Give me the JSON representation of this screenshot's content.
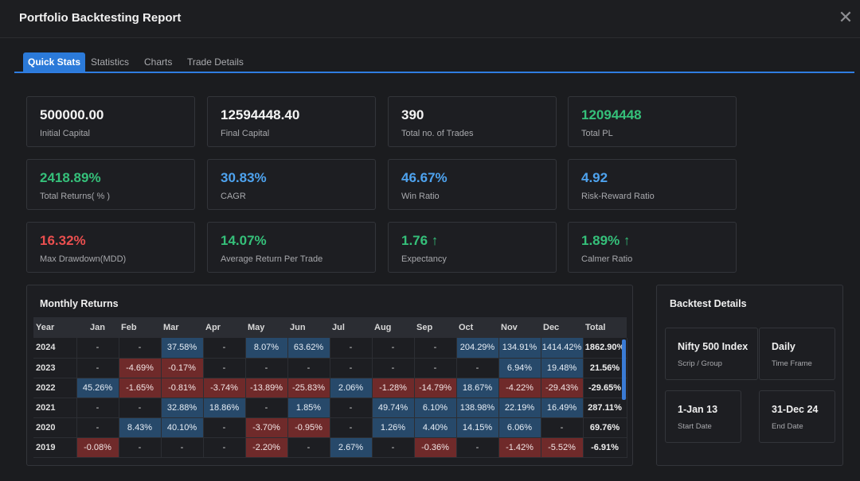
{
  "window": {
    "title": "Portfolio Backtesting Report",
    "close_glyph": "✕"
  },
  "tabs": [
    "Quick Stats",
    "Statistics",
    "Charts",
    "Trade Details"
  ],
  "cards": [
    {
      "value": "500000.00",
      "label": "Initial Capital"
    },
    {
      "value": "12594448.40",
      "label": "Final Capital"
    },
    {
      "value": "390",
      "label": "Total no. of Trades"
    },
    {
      "value": "12094448",
      "label": "Total PL"
    },
    {
      "value": "2418.89%",
      "label": "Total Returns( % )"
    },
    {
      "value": "30.83%",
      "label": "CAGR"
    },
    {
      "value": "46.67%",
      "label": "Win Ratio"
    },
    {
      "value": "4.92",
      "label": "Risk-Reward Ratio"
    },
    {
      "value": "16.32%",
      "label": "Max Drawdown(MDD)"
    },
    {
      "value": "14.07%",
      "label": "Average Return Per Trade"
    },
    {
      "value": "1.76 ↑",
      "label": "Expectancy"
    },
    {
      "value": "1.89% ↑",
      "label": "Calmer Ratio"
    }
  ],
  "colors": {
    "positive": "#35c07a",
    "accent": "#4ea3ef",
    "negative": "#ea4f4f",
    "tab_active": "#2b7ad9"
  },
  "monthly": {
    "title": "Monthly Returns",
    "headers": [
      "Year",
      "Jan",
      "Feb",
      "Mar",
      "Apr",
      "May",
      "Jun",
      "Jul",
      "Aug",
      "Sep",
      "Oct",
      "Nov",
      "Dec",
      "Total"
    ],
    "rows": [
      [
        "2024",
        "-",
        "-",
        "37.58%",
        "-",
        "8.07%",
        "63.62%",
        "-",
        "-",
        "-",
        "204.29%",
        "134.91%",
        "1414.42%",
        "1862.90%"
      ],
      [
        "2023",
        "-",
        "-4.69%",
        "-0.17%",
        "-",
        "-",
        "-",
        "-",
        "-",
        "-",
        "-",
        "6.94%",
        "19.48%",
        "21.56%"
      ],
      [
        "2022",
        "45.26%",
        "-1.65%",
        "-0.81%",
        "-3.74%",
        "-13.89%",
        "-25.83%",
        "2.06%",
        "-1.28%",
        "-14.79%",
        "18.67%",
        "-4.22%",
        "-29.43%",
        "-29.65%"
      ],
      [
        "2021",
        "-",
        "-",
        "32.88%",
        "18.86%",
        "-",
        "1.85%",
        "-",
        "49.74%",
        "6.10%",
        "138.98%",
        "22.19%",
        "16.49%",
        "287.11%"
      ],
      [
        "2020",
        "-",
        "8.43%",
        "40.10%",
        "-",
        "-3.70%",
        "-0.95%",
        "-",
        "1.26%",
        "4.40%",
        "14.15%",
        "6.06%",
        "-",
        "69.76%"
      ],
      [
        "2019",
        "-0.08%",
        "-",
        "-",
        "-",
        "-2.20%",
        "-",
        "2.67%",
        "-",
        "-0.36%",
        "-",
        "-1.42%",
        "-5.52%",
        "-6.91%"
      ]
    ]
  },
  "details": {
    "title": "Backtest Details",
    "items": [
      {
        "value": "Nifty 500 Index",
        "label": "Scrip / Group"
      },
      {
        "value": "Daily",
        "label": "Time Frame"
      },
      {
        "value": "1-Jan 13",
        "label": "Start Date"
      },
      {
        "value": "31-Dec 24",
        "label": "End Date"
      }
    ]
  }
}
